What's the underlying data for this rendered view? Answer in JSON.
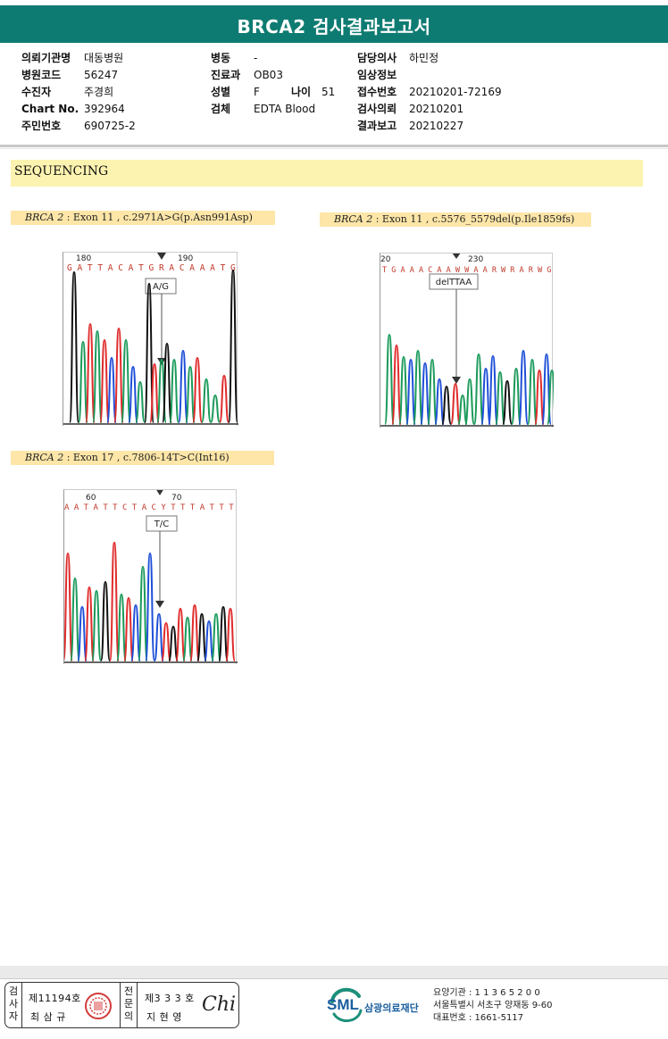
{
  "title": "BRCA2 검사결과보고서",
  "info": {
    "col1": [
      {
        "label": "의뢰기관명",
        "value": "대동병원"
      },
      {
        "label": "병원코드",
        "value": "56247"
      },
      {
        "label": "수진자",
        "value": "주경희"
      },
      {
        "label": "Chart No.",
        "value": "392964"
      },
      {
        "label": "주민번호",
        "value": "690725-2"
      }
    ],
    "col2": [
      {
        "label": "병동",
        "value": "-"
      },
      {
        "label": "진료과",
        "value": "OB03"
      },
      {
        "label": "성별",
        "value": "F"
      },
      {
        "label": "검체",
        "value": "EDTA Blood"
      }
    ],
    "age_label": "나이",
    "age_value": "51",
    "col3": [
      {
        "label": "담당의사",
        "value": "하민정"
      },
      {
        "label": "임상정보",
        "value": ""
      },
      {
        "label": "접수번호",
        "value": "20210201-72169"
      },
      {
        "label": "검사의뢰",
        "value": "20210201"
      },
      {
        "label": "결과보고",
        "value": "20210227"
      }
    ]
  },
  "section_title": "SEQUENCING",
  "variants": [
    {
      "gene": "BRCA 2",
      "desc": ": Exon 11 , c.2971A>G(p.Asn991Asp)",
      "pos_start": "180",
      "pos_mid": "190",
      "sequence": "G A T T A C A T G R A C A A A T G",
      "call": "A/G"
    },
    {
      "gene": "BRCA 2",
      "desc": ": Exon 11 , c.5576_5579del(p.Ile1859fs)",
      "pos_start": "20",
      "pos_mid": "230",
      "sequence": "T G A A A C A A W W A A R W R A R W G",
      "call": "delTTAA"
    },
    {
      "gene": "BRCA 2",
      "desc": ": Exon 17 , c.7806-14T>C(Int16)",
      "pos_start": "60",
      "pos_mid": "70",
      "sequence": "A A T A T T C T A C Y T T T A T T T G T",
      "call": "T/C"
    }
  ],
  "colors": {
    "header": "#0e7b72",
    "banner": "#fdf3b0",
    "label_bg": "#fde6a8",
    "trace_black": "#111111",
    "trace_green": "#1a9a5a",
    "trace_red": "#e02b2b",
    "trace_blue": "#1f4fd8"
  },
  "footer": {
    "examiner_label": "검사자",
    "examiner_no": "제11194호",
    "examiner_name": "최 삼 규",
    "specialist_label": "전문의",
    "specialist_no": "제3 3 3 호",
    "specialist_name": "지 현 영",
    "signature": "Chi",
    "org_abbr": "SML",
    "org_name": "삼광의료재단",
    "care_no": "요양기관 : 1 1 3 6 5 2 0 0",
    "address": "서울특별시 서초구 양재동 9-60",
    "phone": "대표번호 : 1661-5117"
  }
}
